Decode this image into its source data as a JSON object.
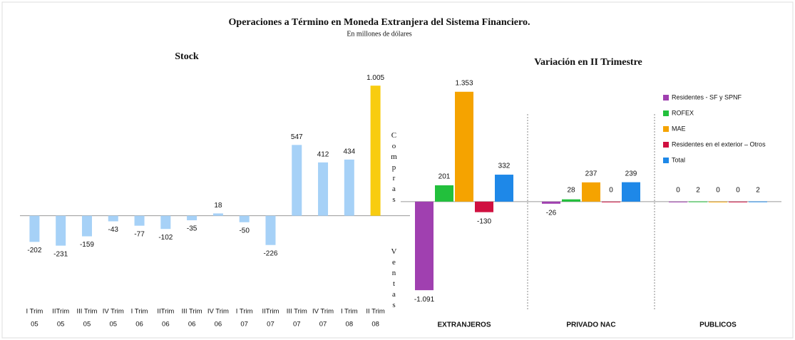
{
  "title": "Operaciones a Término en Moneda Extranjera del Sistema Financiero.",
  "subtitle": "En millones de dólares",
  "chart_data": [
    {
      "type": "bar",
      "title": "Stock",
      "categories": [
        [
          "I Trim",
          "05"
        ],
        [
          "IITrim",
          "05"
        ],
        [
          "III Trim",
          "05"
        ],
        [
          "IV Trim",
          "05"
        ],
        [
          "I Trim",
          "06"
        ],
        [
          "IITrim",
          "06"
        ],
        [
          "III Trim",
          "06"
        ],
        [
          "IV Trim",
          "06"
        ],
        [
          "I Trim",
          "07"
        ],
        [
          "IITrim",
          "07"
        ],
        [
          "III Trim",
          "07"
        ],
        [
          "IV Trim",
          "07"
        ],
        [
          "I Trim",
          "08"
        ],
        [
          "II Trim",
          "08"
        ]
      ],
      "values": [
        -202,
        -231,
        -159,
        -43,
        -77,
        -102,
        -35,
        18,
        -50,
        -226,
        547,
        412,
        434,
        1005
      ],
      "value_labels": [
        "-202",
        "-231",
        "-159",
        "-43",
        "-77",
        "-102",
        "-35",
        "18",
        "-50",
        "-226",
        "547",
        "412",
        "434",
        "1.005"
      ],
      "colors": [
        "#a6d1f7",
        "#a6d1f7",
        "#a6d1f7",
        "#a6d1f7",
        "#a6d1f7",
        "#a6d1f7",
        "#a6d1f7",
        "#a6d1f7",
        "#a6d1f7",
        "#a6d1f7",
        "#a6d1f7",
        "#a6d1f7",
        "#a6d1f7",
        "#f8cc10"
      ],
      "annotations": [
        "Compras",
        "Ventas"
      ],
      "ylim": [
        -646,
        1050
      ]
    },
    {
      "type": "grouped_bar",
      "title": "Variación en II Trimestre",
      "categories": [
        "EXTRANJEROS",
        "PRIVADO NAC",
        "PUBLICOS"
      ],
      "series": [
        {
          "name": "Residentes - SF y SPNF",
          "color": "#a040b0",
          "values": [
            -1091,
            -26,
            0
          ],
          "value_labels": [
            "-1.091",
            "-26",
            "0"
          ]
        },
        {
          "name": "ROFEX",
          "color": "#22c03c",
          "values": [
            201,
            28,
            2
          ],
          "value_labels": [
            "201",
            "28",
            "2"
          ]
        },
        {
          "name": "MAE",
          "color": "#f5a300",
          "values": [
            1353,
            237,
            0
          ],
          "value_labels": [
            "1.353",
            "237",
            "0"
          ]
        },
        {
          "name": "Residentes en el exterior – Otros",
          "color": "#d01040",
          "values": [
            -130,
            0,
            0
          ],
          "value_labels": [
            "-130",
            "0",
            "0"
          ]
        },
        {
          "name": "Total",
          "color": "#1e88e8",
          "values": [
            332,
            239,
            2
          ],
          "value_labels": [
            "332",
            "239",
            "2"
          ]
        }
      ],
      "legend": "upper right",
      "ylim": [
        -1204,
        1500
      ]
    }
  ]
}
